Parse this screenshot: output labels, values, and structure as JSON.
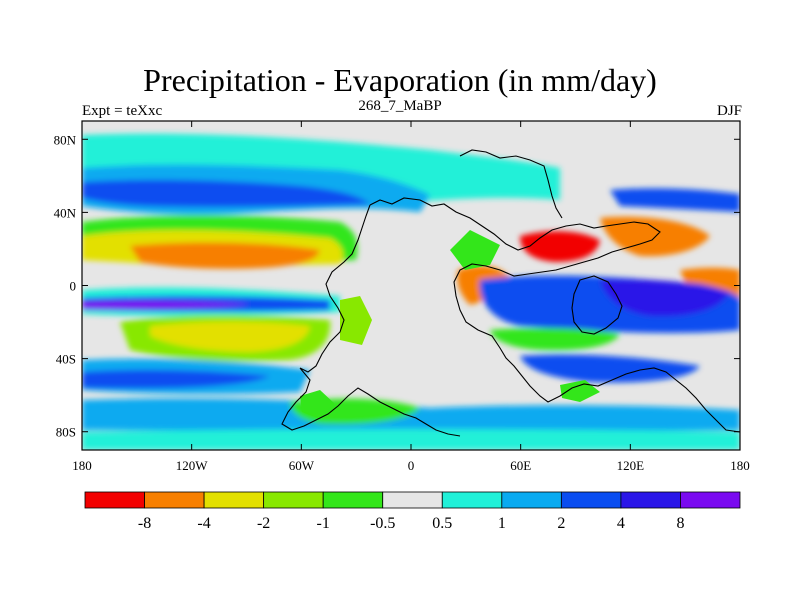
{
  "title": "Precipitation - Evaporation (in mm/day)",
  "subtitle": "268_7_MaBP",
  "left_label": "Expt = teXxc",
  "right_label": "DJF",
  "x_ticks": [
    "180",
    "120W",
    "60W",
    "0",
    "60E",
    "120E",
    "180"
  ],
  "y_ticks": [
    "80N",
    "40N",
    "0",
    "40S",
    "80S"
  ],
  "colorbar": {
    "labels": [
      "-8",
      "-4",
      "-2",
      "-1",
      "-0.5",
      "0.5",
      "1",
      "2",
      "4",
      "8"
    ],
    "colors": [
      "#f20000",
      "#f77f00",
      "#e3e000",
      "#88e800",
      "#33e61a",
      "#e6e6e6",
      "#20f0d8",
      "#0aaaf0",
      "#0a4df0",
      "#2a16e8",
      "#7a0af0"
    ]
  },
  "map_colors": {
    "background": "#e6e6e6",
    "coast": "#000000"
  }
}
